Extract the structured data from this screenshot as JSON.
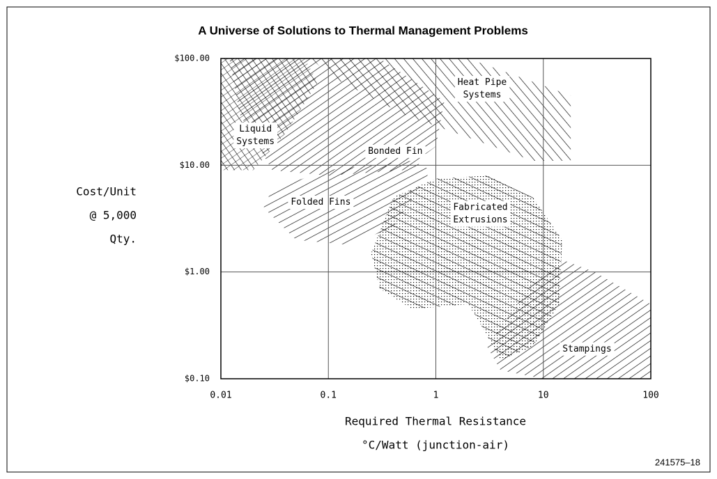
{
  "chart_data": {
    "type": "region",
    "title": "A Universe of Solutions to Thermal Management Problems",
    "y_label": [
      "Cost/Unit",
      "@ 5,000",
      "Qty."
    ],
    "x_label": [
      "Required Thermal Resistance",
      "°C/Watt (junction-air)"
    ],
    "figure_id": "241575–18",
    "xlog": true,
    "ylog": true,
    "grid": true,
    "xlim": [
      0.01,
      100
    ],
    "ylim": [
      0.1,
      100
    ],
    "xticks": [
      0.01,
      0.1,
      1,
      10,
      100
    ],
    "yticks": [
      {
        "value": 0.1,
        "label": "$0.10"
      },
      {
        "value": 1,
        "label": "$1.00"
      },
      {
        "value": 10,
        "label": "$10.00"
      },
      {
        "value": 100,
        "label": "$100.00"
      }
    ],
    "regions": [
      {
        "name": [
          "Bonded Fin"
        ],
        "pattern": "fwd",
        "label_x": 0.42,
        "label_y": 13.5,
        "x": [
          0.012,
          0.3,
          1.2,
          1,
          0.5,
          0.1,
          0.03,
          0.015
        ],
        "y": [
          100,
          100,
          40,
          15,
          9,
          8,
          9,
          30
        ]
      },
      {
        "name": [
          "Heat Pipe",
          "Systems"
        ],
        "pattern": "back",
        "label_x": 2.7,
        "label_y": 52,
        "x": [
          0.07,
          2,
          18,
          18,
          8,
          0.5,
          0.1
        ],
        "y": [
          100,
          100,
          45,
          11,
          11,
          30,
          70
        ]
      },
      {
        "name": [
          "Liquid",
          "Systems"
        ],
        "pattern": "cross",
        "label_x": 0.021,
        "label_y": 19,
        "x": [
          0.01,
          0.06,
          0.08,
          0.04,
          0.02,
          0.01
        ],
        "y": [
          100,
          100,
          60,
          20,
          9,
          9
        ]
      },
      {
        "name": [
          "Folded Fins"
        ],
        "pattern": "fwd-flat",
        "label_x": 0.085,
        "label_y": 4.5,
        "x": [
          0.025,
          0.05,
          0.15,
          0.4,
          0.9,
          0.6,
          0.1,
          0.03
        ],
        "y": [
          4,
          2,
          1.8,
          2.6,
          9,
          11,
          9,
          6
        ]
      },
      {
        "name": [
          "Fabricated",
          "Extrusions"
        ],
        "pattern": "dots",
        "label_x": 2.6,
        "label_y": 3.5,
        "x": [
          0.25,
          0.4,
          1,
          3,
          8,
          15,
          14,
          8,
          4,
          2.5,
          2,
          0.6,
          0.3
        ],
        "y": [
          1.5,
          5,
          7.5,
          8,
          5,
          2,
          0.5,
          0.2,
          0.15,
          0.35,
          0.5,
          0.45,
          0.7
        ]
      },
      {
        "name": [
          "Stampings"
        ],
        "pattern": "fwd",
        "label_x": 25.5,
        "label_y": 0.19,
        "x": [
          3,
          8,
          15,
          30,
          100,
          100,
          10,
          4
        ],
        "y": [
          0.2,
          0.8,
          1.3,
          1,
          0.5,
          0.1,
          0.1,
          0.12
        ]
      }
    ]
  }
}
